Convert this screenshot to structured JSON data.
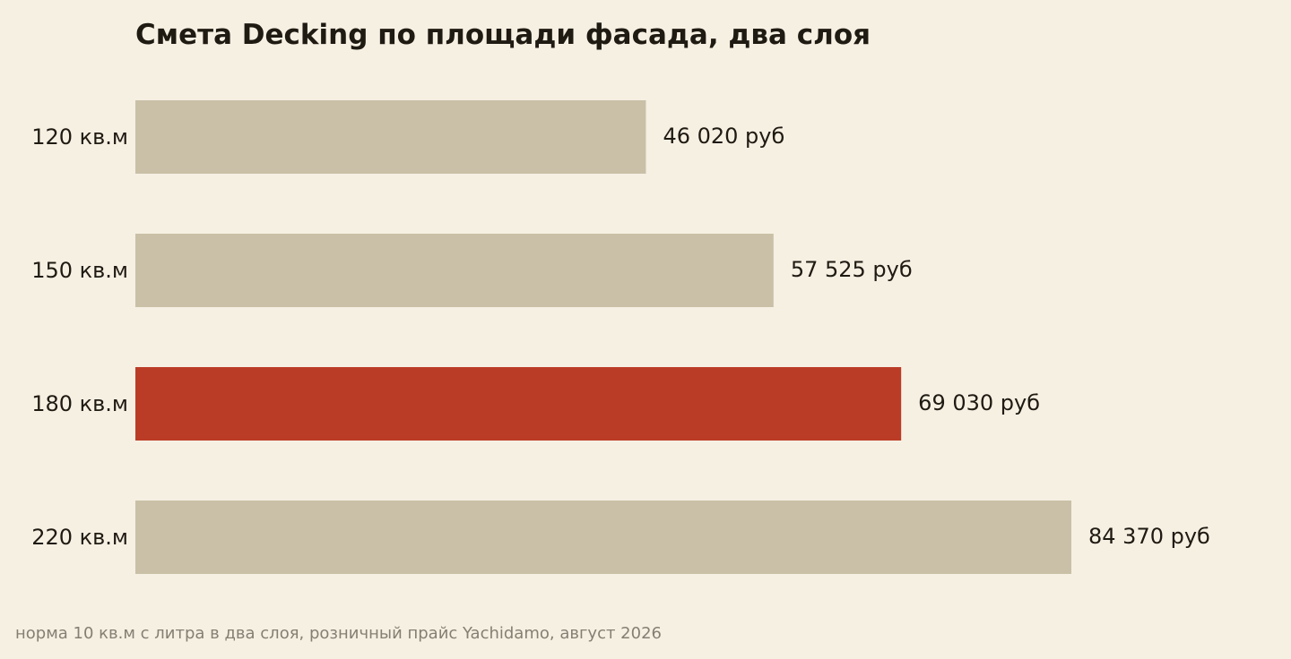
{
  "colors": {
    "background": "#f6f0e3",
    "bar_default": "#c9c0a7",
    "bar_highlight": "#bb3c26",
    "text": "#1f1a12",
    "footnote": "#857f73"
  },
  "chart_data": {
    "type": "bar",
    "orientation": "horizontal",
    "title": "Смета Decking по площади фасада, два слоя",
    "categories": [
      "120 кв.м",
      "150 кв.м",
      "180 кв.м",
      "220 кв.м"
    ],
    "values": [
      46020,
      57525,
      69030,
      84370
    ],
    "value_labels": [
      "46 020 руб",
      "57 525 руб",
      "69 030 руб",
      "84 370 руб"
    ],
    "highlight_category": "180 кв.м",
    "xlim": [
      0,
      84370
    ],
    "grid": false,
    "legend": "none"
  },
  "footnote": "норма 10 кв.м с литра в два слоя, розничный прайс Yachidamo, август 2026"
}
